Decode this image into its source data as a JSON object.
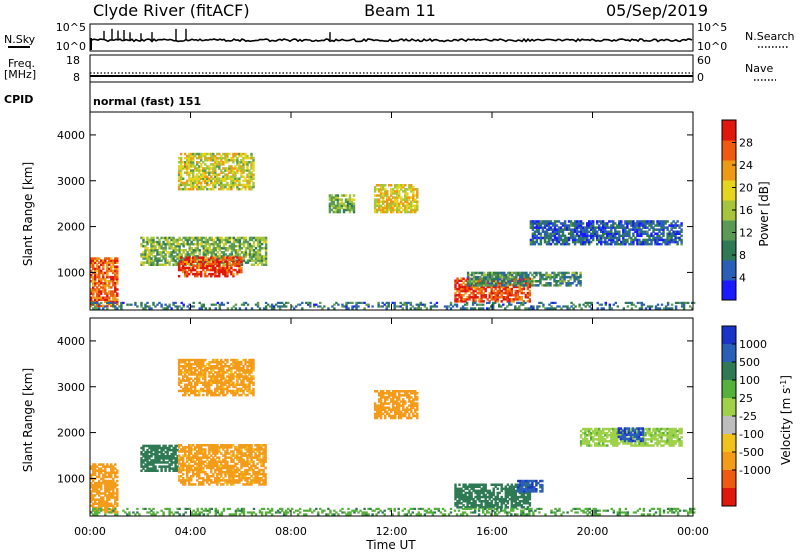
{
  "header": {
    "site": "Clyde River (fitACF)",
    "beam": "Beam 11",
    "date": "05/Sep/2019"
  },
  "top_panels": {
    "nsky_label": "N.Sky",
    "nsky_tick_hi": "10^5",
    "nsky_tick_lo": "10^0",
    "nsearch_label": "N.Search",
    "nsearch_tick_hi": "10^5",
    "nsearch_tick_lo": "10^0",
    "freq_label": "Freq.",
    "freq_unit": "[MHz]",
    "freq_tick_hi": "18",
    "freq_tick_lo": "8",
    "nave_label": "Nave",
    "nave_tick_hi": "60",
    "nave_tick_lo": "0",
    "cpid_label": "CPID",
    "cpid_value": "normal (fast) 151"
  },
  "colors": {
    "power_scale": [
      "#1a1aff",
      "#2a5fb8",
      "#2f7a55",
      "#5a9a55",
      "#a7c53a",
      "#e5d51f",
      "#ee9a16",
      "#ed5a10",
      "#e0170c"
    ],
    "velocity_scale": [
      "#e0170c",
      "#ed5a10",
      "#f39c1a",
      "#f2c21c",
      "#bdbdbd",
      "#9fd14a",
      "#56b03c",
      "#2f7a55",
      "#2a5fb8",
      "#1a34c8"
    ]
  },
  "chart_data": [
    {
      "type": "heatmap",
      "panel": "power",
      "xlabel": "",
      "ylabel": "Slant Range [km]",
      "x_ticks": [
        "00:00",
        "04:00",
        "08:00",
        "12:00",
        "16:00",
        "20:00",
        "00:00"
      ],
      "x_range_hours": [
        0,
        24
      ],
      "ylim": [
        180,
        4500
      ],
      "y_ticks": [
        1000,
        2000,
        3000,
        4000
      ],
      "colorbar_label": "Power [dB]",
      "colorbar_ticks": [
        4,
        8,
        12,
        16,
        20,
        24,
        28
      ],
      "colorbar_range": [
        0,
        32
      ],
      "regions": [
        {
          "t": [
            0.0,
            1.1
          ],
          "r": [
            250,
            1300
          ],
          "level": 26
        },
        {
          "t": [
            2.0,
            7.0
          ],
          "r": [
            1150,
            1750
          ],
          "level": 14
        },
        {
          "t": [
            3.5,
            6.0
          ],
          "r": [
            900,
            1350
          ],
          "level": 28
        },
        {
          "t": [
            3.5,
            6.5
          ],
          "r": [
            2800,
            3600
          ],
          "level": 18
        },
        {
          "t": [
            9.5,
            10.5
          ],
          "r": [
            2300,
            2700
          ],
          "level": 14
        },
        {
          "t": [
            11.3,
            13.0
          ],
          "r": [
            2300,
            2900
          ],
          "level": 20
        },
        {
          "t": [
            14.5,
            17.5
          ],
          "r": [
            350,
            850
          ],
          "level": 28
        },
        {
          "t": [
            15.0,
            19.5
          ],
          "r": [
            700,
            1000
          ],
          "level": 10
        },
        {
          "t": [
            17.5,
            23.5
          ],
          "r": [
            1600,
            2100
          ],
          "level": 6
        },
        {
          "t": [
            0.0,
            24.0
          ],
          "r": [
            200,
            350
          ],
          "level": 8
        }
      ]
    },
    {
      "type": "heatmap",
      "panel": "velocity",
      "xlabel": "Time UT",
      "ylabel": "Slant Range [km]",
      "x_ticks": [
        "00:00",
        "04:00",
        "08:00",
        "12:00",
        "16:00",
        "20:00",
        "00:00"
      ],
      "x_range_hours": [
        0,
        24
      ],
      "ylim": [
        180,
        4500
      ],
      "y_ticks": [
        1000,
        2000,
        3000,
        4000
      ],
      "colorbar_label": "Velocity [m s^-1]",
      "colorbar_ticks": [
        "1000",
        "500",
        "100",
        "25",
        "-25",
        "-100",
        "-500",
        "-1000"
      ],
      "regions": [
        {
          "t": [
            0.0,
            1.1
          ],
          "r": [
            250,
            1300
          ],
          "velocity": -300
        },
        {
          "t": [
            2.0,
            3.5
          ],
          "r": [
            1150,
            1700
          ],
          "velocity": 200
        },
        {
          "t": [
            3.5,
            7.0
          ],
          "r": [
            850,
            1750
          ],
          "velocity": -150
        },
        {
          "t": [
            3.5,
            6.5
          ],
          "r": [
            2800,
            3600
          ],
          "velocity": -150
        },
        {
          "t": [
            11.3,
            13.0
          ],
          "r": [
            2300,
            2900
          ],
          "velocity": -200
        },
        {
          "t": [
            14.5,
            17.5
          ],
          "r": [
            350,
            850
          ],
          "velocity": 300
        },
        {
          "t": [
            17.0,
            18.0
          ],
          "r": [
            700,
            950
          ],
          "velocity": 800
        },
        {
          "t": [
            19.5,
            23.5
          ],
          "r": [
            1700,
            2100
          ],
          "velocity": 20
        },
        {
          "t": [
            21.0,
            22.0
          ],
          "r": [
            1800,
            2100
          ],
          "velocity": 900
        },
        {
          "t": [
            0.0,
            24.0
          ],
          "r": [
            200,
            350
          ],
          "velocity": 80
        }
      ]
    }
  ]
}
